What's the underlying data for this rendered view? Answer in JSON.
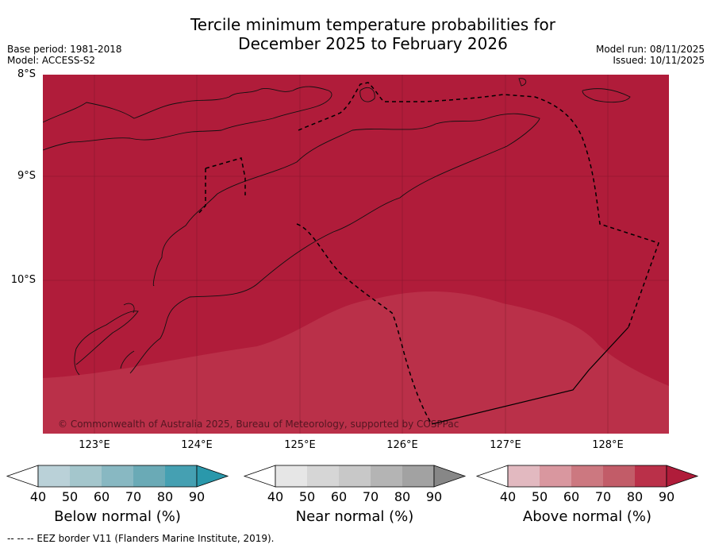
{
  "title_line1": "Tercile minimum temperature probabilities for",
  "title_line2": "December 2025 to February 2026",
  "base_period": "Base period: 1981-2018",
  "model": "Model: ACCESS-S2",
  "model_run": "Model run: 08/11/2025",
  "issued": "Issued: 10/11/2025",
  "map": {
    "lat_labels": [
      "8°S",
      "9°S",
      "10°S"
    ],
    "lon_labels": [
      "123°E",
      "124°E",
      "125°E",
      "126°E",
      "127°E",
      "128°E"
    ],
    "copyright": "© Commonwealth of Australia 2025, Bureau of Meteorology, supported by COSPPac",
    "fill_colors": {
      "above_90": "#b01c3a",
      "above_80": "#ba3049"
    },
    "dominant_category": "Above normal"
  },
  "colorbars": [
    {
      "title": "Below normal (%)",
      "ticks": [
        "40",
        "50",
        "60",
        "70",
        "80",
        "90"
      ],
      "colors": [
        "#ffffff",
        "#bad1d8",
        "#a4c6cc",
        "#88b8c2",
        "#6aaab6",
        "#45a0b2",
        "#2a98ab"
      ]
    },
    {
      "title": "Near normal (%)",
      "ticks": [
        "40",
        "50",
        "60",
        "70",
        "80",
        "90"
      ],
      "colors": [
        "#ffffff",
        "#e6e6e6",
        "#d6d6d6",
        "#c8c8c8",
        "#b4b4b4",
        "#a2a2a2",
        "#878787"
      ]
    },
    {
      "title": "Above normal (%)",
      "ticks": [
        "40",
        "50",
        "60",
        "70",
        "80",
        "90"
      ],
      "colors": [
        "#ffffff",
        "#e2b9c0",
        "#d9979f",
        "#cc7880",
        "#c25c68",
        "#ba3049",
        "#b01c3a"
      ]
    }
  ],
  "footer": "--  --  -- EEZ border V11 (Flanders Marine Institute, 2019)."
}
